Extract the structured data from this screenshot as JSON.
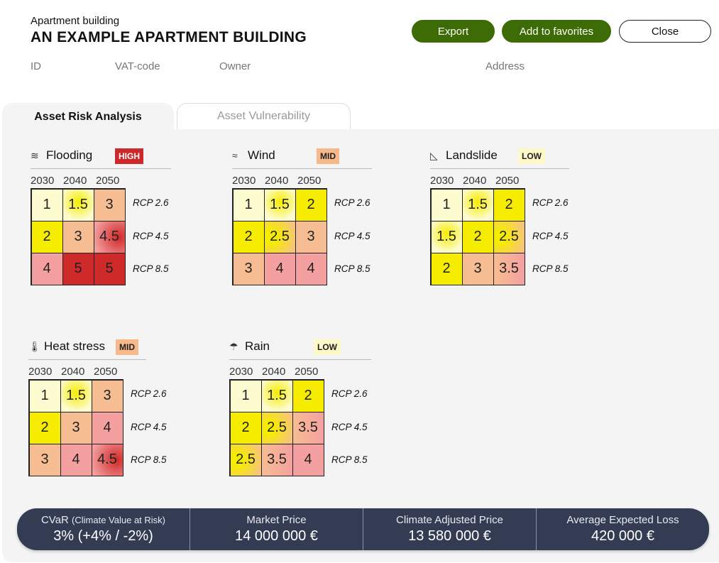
{
  "header": {
    "type_label": "Apartment building",
    "title": "AN EXAMPLE APARTMENT BUILDING",
    "export_label": "Export",
    "favorites_label": "Add to favorites",
    "close_label": "Close"
  },
  "meta": {
    "id_label": "ID",
    "vat_label": "VAT-code",
    "owner_label": "Owner",
    "address_label": "Address"
  },
  "tabs": [
    {
      "label": "Asset Risk Analysis",
      "active": true
    },
    {
      "label": "Asset Vulnerability",
      "active": false
    }
  ],
  "years": [
    "2030",
    "2040",
    "2050"
  ],
  "scenarios": [
    "RCP 2.6",
    "RCP 4.5",
    "RCP 8.5"
  ],
  "risks": [
    {
      "name": "Flooding",
      "icon": "flooding-icon",
      "level": "HIGH",
      "values": [
        [
          "1",
          "1.5",
          "3"
        ],
        [
          "2",
          "3",
          "4.5"
        ],
        [
          "4",
          "5",
          "5"
        ]
      ]
    },
    {
      "name": "Wind",
      "icon": "wind-icon",
      "level": "MID",
      "values": [
        [
          "1",
          "1.5",
          "2"
        ],
        [
          "2",
          "2.5",
          "3"
        ],
        [
          "3",
          "4",
          "4"
        ]
      ]
    },
    {
      "name": "Landslide",
      "icon": "landslide-icon",
      "level": "LOW",
      "values": [
        [
          "1",
          "1.5",
          "2"
        ],
        [
          "1.5",
          "2",
          "2.5"
        ],
        [
          "2",
          "3",
          "3.5"
        ]
      ]
    },
    {
      "name": "Heat stress",
      "icon": "thermometer-icon",
      "level": "MID",
      "values": [
        [
          "1",
          "1.5",
          "3"
        ],
        [
          "2",
          "3",
          "4"
        ],
        [
          "3",
          "4",
          "4.5"
        ]
      ]
    },
    {
      "name": "Rain",
      "icon": "rain-icon",
      "level": "LOW",
      "values": [
        [
          "1",
          "1.5",
          "2"
        ],
        [
          "2",
          "2.5",
          "3.5"
        ],
        [
          "2.5",
          "3.5",
          "4"
        ]
      ]
    }
  ],
  "colors": {
    "level_high": "#cc2a2a",
    "level_mid": "#f7b98a",
    "level_low": "#fdf8c8",
    "score_1": "#fdfbd0",
    "score_2": "#f5ec00",
    "score_3": "#f7bd92",
    "score_4": "#f4a0a0",
    "score_5": "#cf2a2a",
    "accent_green": "#3d6b05",
    "footer_bg": "#333c52"
  },
  "footer": {
    "cvar_label": "CVaR",
    "cvar_sub": "(Climate Value at Risk)",
    "cvar_value": "3% (+4% / -2%)",
    "market_label": "Market Price",
    "market_value": "14 000 000 €",
    "adjusted_label": "Climate Adjusted Price",
    "adjusted_value": "13 580 000 €",
    "loss_label": "Average Expected Loss",
    "loss_value": "420 000 €"
  }
}
